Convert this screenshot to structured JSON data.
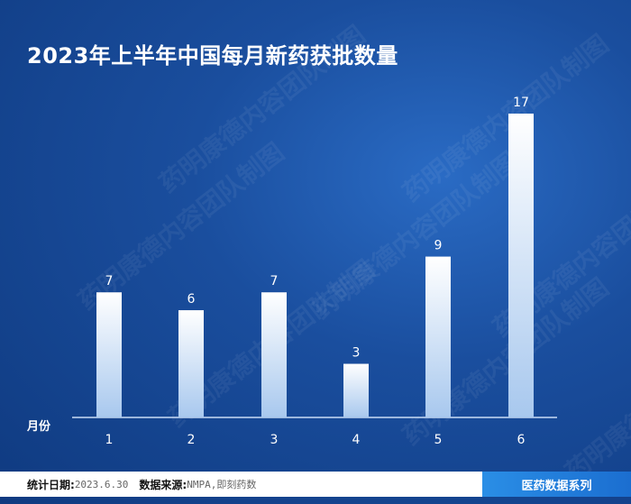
{
  "title": "2023年上半年中国每月新药获批数量",
  "watermark_text": "药明康德内容团队制图",
  "footer": {
    "date_label": "统计日期:",
    "date_value": "2023.6.30",
    "source_label": "数据来源:",
    "source_value": "NMPA,即刻药数",
    "series_badge": "医药数据系列"
  },
  "colors": {
    "background": "#1a4e9e",
    "bar_top": "#ffffff",
    "bar_bottom": "#a8c8ee",
    "badge": "#2a8ee6"
  },
  "chart_data": {
    "type": "bar",
    "title": "2023年上半年中国每月新药获批数量",
    "xlabel": "月份",
    "ylabel": "",
    "categories": [
      "1",
      "2",
      "3",
      "4",
      "5",
      "6"
    ],
    "values": [
      7,
      6,
      7,
      3,
      9,
      17
    ],
    "ylim": [
      0,
      17
    ],
    "grid": false,
    "data_labels": true
  }
}
